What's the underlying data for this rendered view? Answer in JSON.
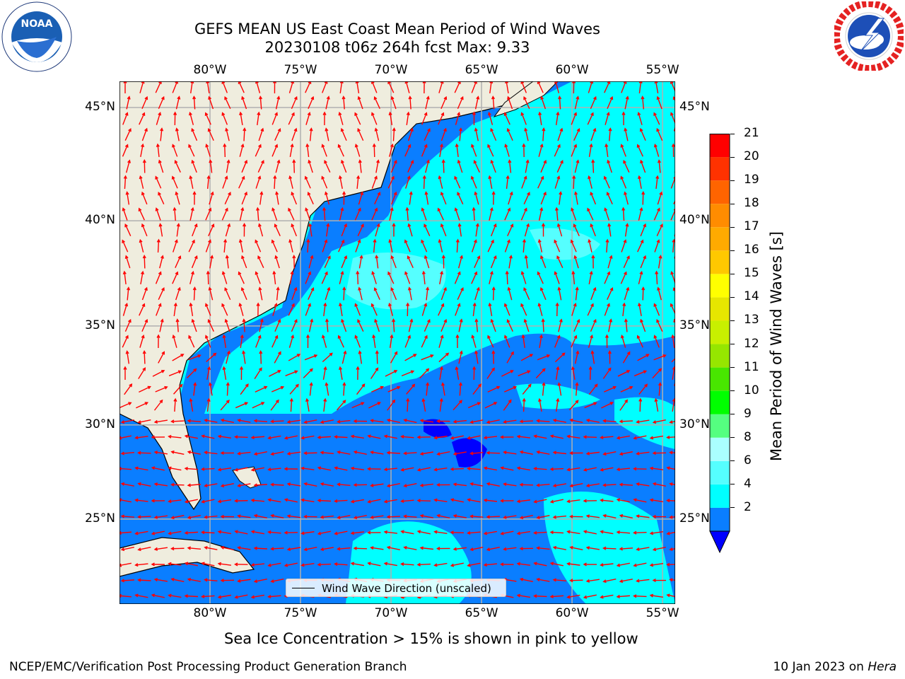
{
  "title": {
    "line1": "GEFS MEAN US East Coast Mean Period of Wind Waves",
    "line2": "20230108 t06z 264h fcst   Max: 9.33"
  },
  "logos": {
    "noaa_text": "NOAA",
    "noaa_ring": "NATIONAL OCEANIC AND ATMOSPHERIC ADMINISTRATION · U.S. DEPARTMENT OF COMMERCE",
    "nws_ring": "NATIONAL WEATHER SERVICE"
  },
  "map": {
    "lon_labels": [
      "80°W",
      "75°W",
      "70°W",
      "65°W",
      "60°W",
      "55°W"
    ],
    "lat_labels": [
      "45°N",
      "40°N",
      "35°N",
      "30°N",
      "25°N"
    ],
    "lon_values": [
      -80,
      -75,
      -70,
      -65,
      -60,
      -55
    ],
    "lat_values": [
      45,
      40,
      35,
      30,
      25
    ],
    "lon_range": [
      -85,
      -54.3
    ],
    "lat_range": [
      20.3,
      46.1
    ],
    "grid": true,
    "legend_label": "Wind Wave Direction (unscaled)",
    "colors": {
      "land": "#efedde",
      "sea_2_4": "#0a7eff",
      "sea_4_6": "#00ffff",
      "sea_6_8": "#55ffff",
      "sea_lt_2": "#0000ff",
      "arrow": "#ff0000",
      "grid": "#b0b0b0"
    }
  },
  "colorbar": {
    "title": "Mean Period of Wind Waves [s]",
    "tick_labels": [
      "21",
      "20",
      "19",
      "18",
      "17",
      "16",
      "15",
      "14",
      "13",
      "12",
      "11",
      "10",
      "9",
      "8",
      "6",
      "4",
      "2"
    ],
    "levels": [
      2,
      4,
      6,
      8,
      9,
      10,
      11,
      12,
      13,
      14,
      15,
      16,
      17,
      18,
      19,
      20,
      21
    ],
    "colors": [
      "#0a7eff",
      "#00ffff",
      "#55ffff",
      "#aaffff",
      "#55ff80",
      "#00ff00",
      "#48e600",
      "#96e600",
      "#c8f000",
      "#e6e600",
      "#ffff00",
      "#ffc800",
      "#ffaa00",
      "#ff8c00",
      "#ff6400",
      "#ff3200",
      "#ff0000"
    ],
    "under_color": "#0000ff",
    "extend": "min"
  },
  "note": "Sea Ice Concentration > 15% is shown in pink to yellow",
  "footer": {
    "left": "NCEP/EMC/Verification Post Processing Product Generation Branch",
    "date": "10 Jan 2023 on ",
    "machine": "Hera"
  }
}
